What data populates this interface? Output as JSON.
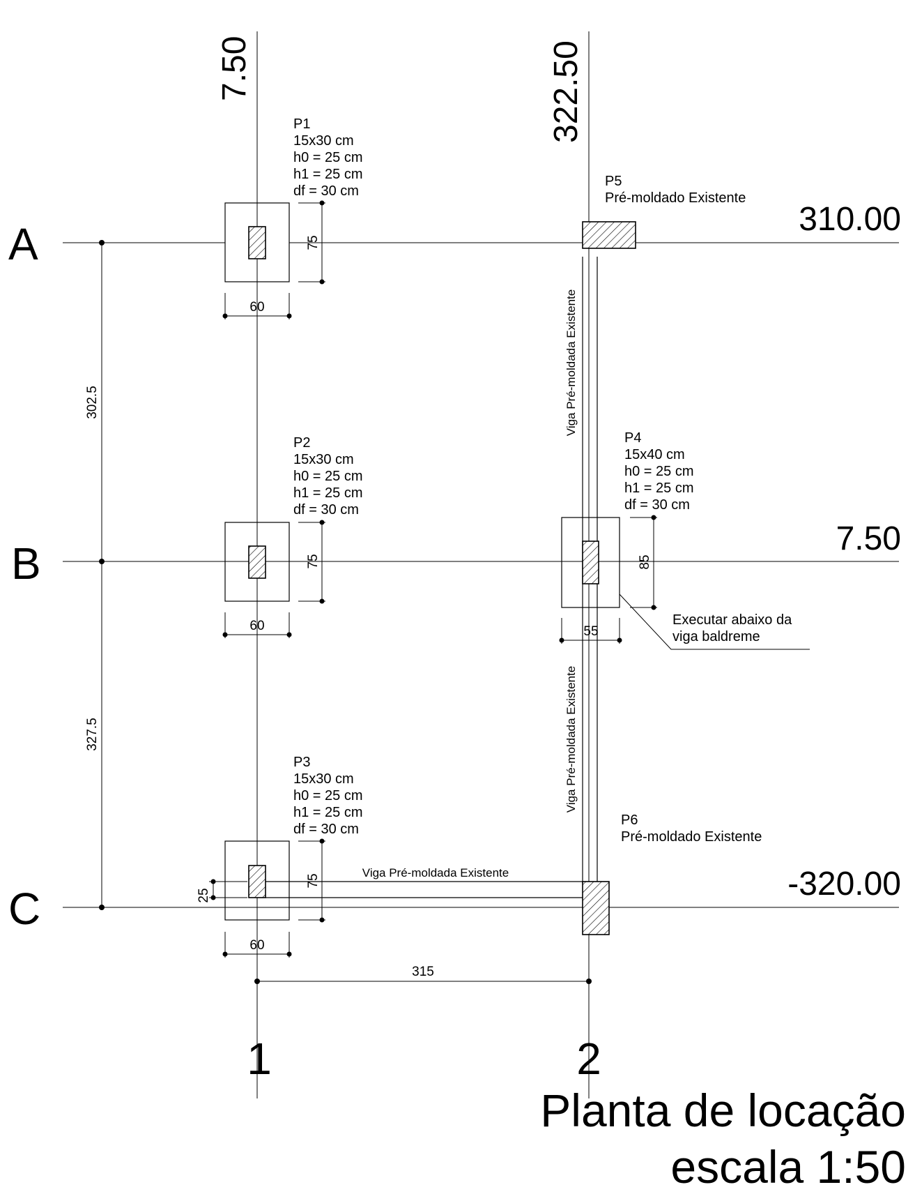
{
  "grid_rows": [
    {
      "label": "A",
      "level": "310.00"
    },
    {
      "label": "B",
      "level": "7.50"
    },
    {
      "label": "C",
      "level": "-320.00"
    }
  ],
  "grid_columns": [
    {
      "label": "1",
      "level": "7.50"
    },
    {
      "label": "2",
      "level": "322.50"
    }
  ],
  "row_dims": [
    "302.5",
    "327.5"
  ],
  "col_dim": "315",
  "pillars": {
    "P1": {
      "name": "P1",
      "size": "15x30 cm",
      "h0": "h0 = 25 cm",
      "h1": "h1 = 25 cm",
      "df": "df = 30 cm",
      "w": "60",
      "h": "75"
    },
    "P2": {
      "name": "P2",
      "size": "15x30 cm",
      "h0": "h0 = 25 cm",
      "h1": "h1 = 25 cm",
      "df": "df = 30 cm",
      "w": "60",
      "h": "75"
    },
    "P3": {
      "name": "P3",
      "size": "15x30 cm",
      "h0": "h0 = 25 cm",
      "h1": "h1 = 25 cm",
      "df": "df = 30 cm",
      "w": "60",
      "h": "75",
      "offset": "25"
    },
    "P4": {
      "name": "P4",
      "size": "15x40 cm",
      "h0": "h0 = 25 cm",
      "h1": "h1 = 25 cm",
      "df": "df = 30 cm",
      "w": "55",
      "h": "85"
    },
    "P5": {
      "name": "P5",
      "desc": "Pré-moldado Existente"
    },
    "P6": {
      "name": "P6",
      "desc": "Pré-moldado Existente"
    }
  },
  "beam_label": "Viga Pré-moldada Existente",
  "note": {
    "line1": "Executar abaixo da",
    "line2": "viga baldreme"
  },
  "title": {
    "line1": "Planta de locação",
    "line2": "escala 1:50"
  }
}
